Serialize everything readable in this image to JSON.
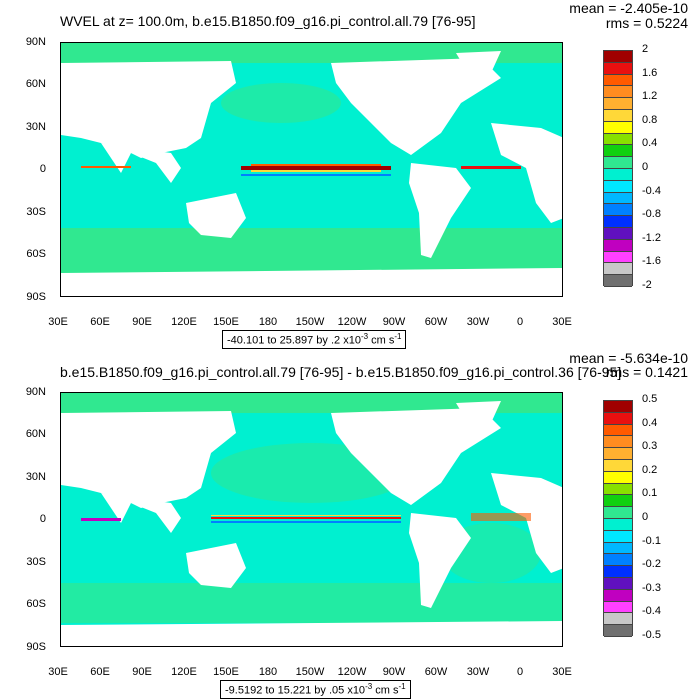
{
  "panel1": {
    "title": "WVEL at z= 100.0m, b.e15.B1850.f09_g16.pi_control.all.79 [76-95]",
    "mean": "mean = -2.405e-10",
    "rms": "rms = 0.5224",
    "range_text": "-40.101 to 25.897 by .2 x10",
    "range_exp": "-3",
    "range_unit": " cm s",
    "range_unit_exp": "-1",
    "colorbar_labels": [
      "2",
      "1.6",
      "1.2",
      "0.8",
      "0.4",
      "0",
      "-0.4",
      "-0.8",
      "-1.2",
      "-1.6",
      "-2"
    ],
    "colorbar_colors": [
      "#a00000",
      "#e81010",
      "#ff5a00",
      "#ff8c20",
      "#ffb030",
      "#ffd838",
      "#ffff00",
      "#88e000",
      "#10d010",
      "#30e890",
      "#00f0d0",
      "#00e8ff",
      "#00b8ff",
      "#0080ff",
      "#0030ff",
      "#6010c0",
      "#c000c0",
      "#ff40ff",
      "#c8c8c8",
      "#707070"
    ]
  },
  "panel2": {
    "title": "b.e15.B1850.f09_g16.pi_control.all.79 [76-95] - b.e15.B1850.f09_g16.pi_control.36 [76-95]",
    "mean": "mean = -5.634e-10",
    "rms": "rms = 0.1421",
    "range_text": "-9.5192 to 15.221 by .05 x10",
    "range_exp": "-3",
    "range_unit": " cm s",
    "range_unit_exp": "-1",
    "colorbar_labels": [
      "0.5",
      "0.4",
      "0.3",
      "0.2",
      "0.1",
      "0",
      "-0.1",
      "-0.2",
      "-0.3",
      "-0.4",
      "-0.5"
    ],
    "colorbar_colors": [
      "#a00000",
      "#e81010",
      "#ff5a00",
      "#ff8c20",
      "#ffb030",
      "#ffd838",
      "#ffff00",
      "#88e000",
      "#10d010",
      "#30e890",
      "#00f0d0",
      "#00e8ff",
      "#00b8ff",
      "#0080ff",
      "#0030ff",
      "#6010c0",
      "#c000c0",
      "#ff40ff",
      "#c8c8c8",
      "#707070"
    ]
  },
  "lat_labels": [
    "90N",
    "60N",
    "30N",
    "0",
    "30S",
    "60S",
    "90S"
  ],
  "lon_labels": [
    "30E",
    "60E",
    "90E",
    "120E",
    "150E",
    "180",
    "150W",
    "120W",
    "90W",
    "60W",
    "30W",
    "0",
    "30E"
  ],
  "colors": {
    "ocean_main": "#00f0d0",
    "ocean_green": "#30e890",
    "land": "#ffffff",
    "equator_red": "#a00000",
    "equator_blue": "#0080ff"
  }
}
